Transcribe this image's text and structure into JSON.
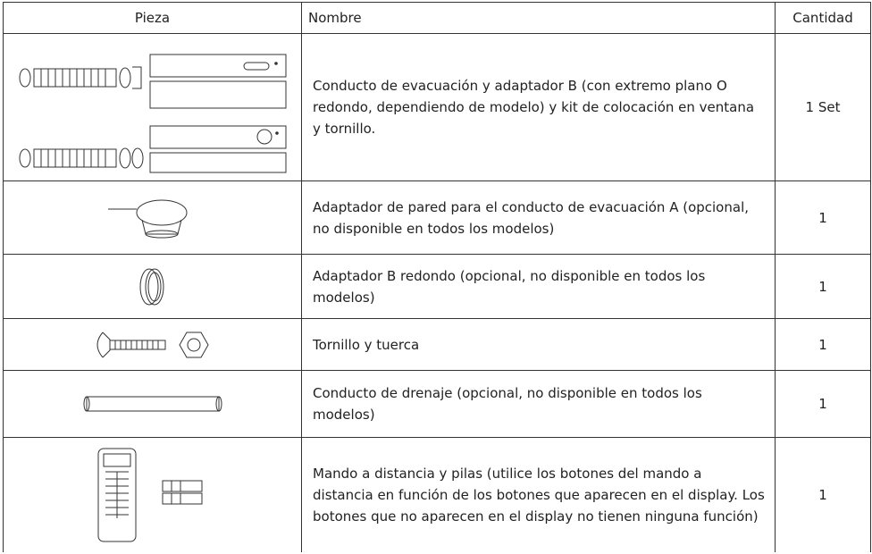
{
  "table": {
    "headers": [
      "Pieza",
      "Nombre",
      "Cantidad"
    ],
    "rows": [
      {
        "name": "Conducto de evacuación y adaptador B (con extremo plano O redondo, dependiendo de modelo) y kit de colocación en ventana y tornillo.",
        "quantity": "1 Set"
      },
      {
        "name": "Adaptador de pared para el conducto de evacuación A (opcional, no disponible en todos los modelos)",
        "quantity": "1"
      },
      {
        "name": "Adaptador B redondo (opcional, no disponible en todos los modelos)",
        "quantity": "1"
      },
      {
        "name": "Tornillo y tuerca",
        "quantity": "1"
      },
      {
        "name": "Conducto de drenaje (opcional, no disponible en todos los modelos)",
        "quantity": "1"
      },
      {
        "name": "Mando a distancia y pilas (utilice los botones del mando a distancia en función de los botones que aparecen en el display. Los botones que no aparecen en el display no tienen ninguna función)",
        "quantity": "1"
      }
    ]
  }
}
